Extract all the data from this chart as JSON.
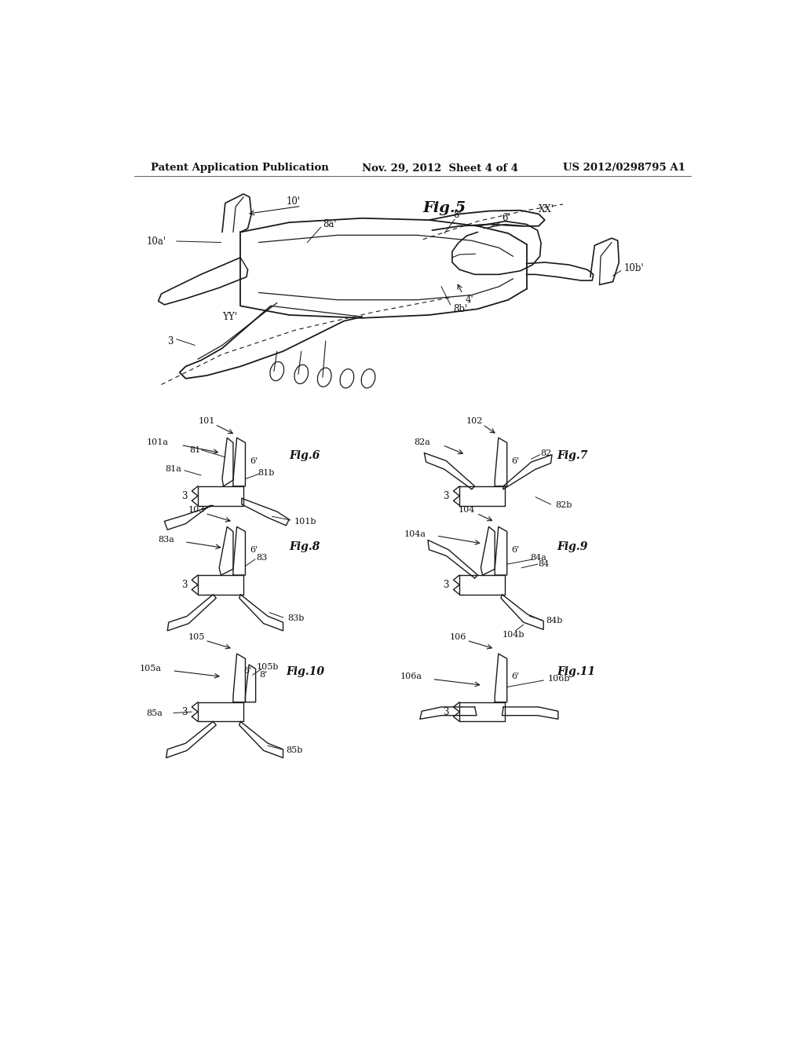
{
  "bg_color": "#ffffff",
  "header_left": "Patent Application Publication",
  "header_mid": "Nov. 29, 2012  Sheet 4 of 4",
  "header_right": "US 2012/0298795 A1",
  "line_color": "#1a1a1a",
  "text_color": "#111111"
}
